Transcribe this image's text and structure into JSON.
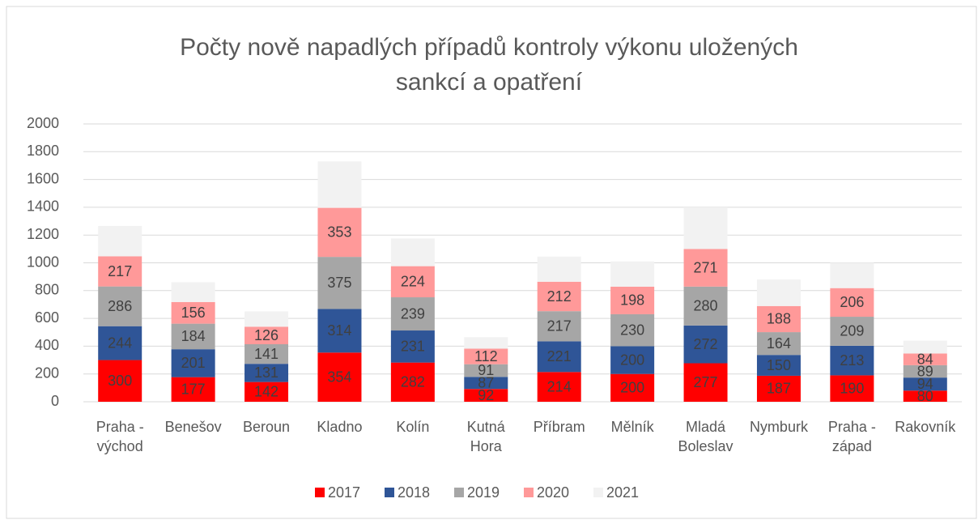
{
  "chart_data": {
    "type": "stacked_bar",
    "title": "Počty nově napadlých případů kontroly výkonu uložených sankcí a opatření",
    "categories": [
      "Praha - východ",
      "Benešov",
      "Beroun",
      "Kladno",
      "Kolín",
      "Kutná Hora",
      "Příbram",
      "Mělník",
      "Mladá Boleslav",
      "Nymburk",
      "Praha - západ",
      "Rakovník"
    ],
    "series": [
      {
        "name": "2017",
        "color": "#ff0000",
        "data_labels": true,
        "values": [
          300,
          177,
          142,
          354,
          282,
          92,
          214,
          200,
          277,
          187,
          190,
          80
        ]
      },
      {
        "name": "2018",
        "color": "#2f5597",
        "data_labels": true,
        "values": [
          244,
          201,
          131,
          314,
          231,
          87,
          221,
          200,
          272,
          150,
          213,
          94
        ]
      },
      {
        "name": "2019",
        "color": "#a6a6a6",
        "data_labels": true,
        "values": [
          286,
          184,
          141,
          375,
          239,
          91,
          217,
          230,
          280,
          164,
          209,
          89
        ]
      },
      {
        "name": "2020",
        "color": "#ff9999",
        "data_labels": true,
        "values": [
          217,
          156,
          126,
          353,
          224,
          112,
          212,
          198,
          271,
          188,
          206,
          84
        ]
      },
      {
        "name": "2021",
        "color": "#f2f2f2",
        "data_labels": false,
        "values": [
          218,
          142,
          110,
          334,
          199,
          83,
          181,
          182,
          300,
          191,
          182,
          93
        ]
      }
    ],
    "ylim": [
      0,
      2000
    ],
    "yticks": [
      0,
      200,
      400,
      600,
      800,
      1000,
      1200,
      1400,
      1600,
      1800,
      2000
    ],
    "grid": true,
    "legend": "bottom"
  }
}
